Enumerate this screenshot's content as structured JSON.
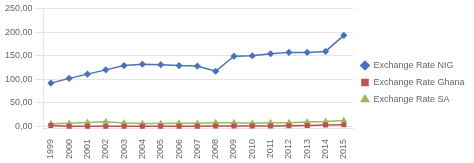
{
  "chart_data": {
    "type": "line",
    "x": [
      1999,
      2000,
      2001,
      2002,
      2003,
      2004,
      2005,
      2006,
      2007,
      2008,
      2009,
      2010,
      2011,
      2012,
      2013,
      2014,
      2015
    ],
    "series": [
      {
        "name": "Exchange Rate NIG",
        "color": "#4472C4",
        "marker": "diamond",
        "values": [
          92,
          102,
          111,
          120,
          129,
          132,
          131,
          129,
          128,
          117,
          149,
          150,
          154,
          157,
          157,
          159,
          193
        ]
      },
      {
        "name": "Exchange Rate Ghana",
        "color": "#C0504D",
        "marker": "square",
        "values": [
          2.5,
          0.7,
          0.7,
          0.7,
          0.9,
          0.9,
          0.9,
          0.9,
          0.9,
          1.1,
          1.4,
          1.4,
          1.5,
          1.9,
          2.2,
          3.2,
          3.8
        ]
      },
      {
        "name": "Exchange Rate SA",
        "color": "#9BBB59",
        "marker": "triangle",
        "values": [
          6.1,
          6.9,
          8.6,
          10.5,
          7.6,
          6.5,
          6.4,
          7.0,
          7.0,
          8.3,
          8.4,
          7.3,
          8.1,
          8.2,
          9.7,
          10.8,
          12.8
        ]
      }
    ],
    "xlim": [
      1998.6,
      2015.5
    ],
    "xticks": [
      1999,
      2000,
      2001,
      2002,
      2003,
      2004,
      2005,
      2006,
      2007,
      2008,
      2009,
      2010,
      2011,
      2012,
      2013,
      2014,
      2015
    ],
    "ylim": [
      -5,
      250
    ],
    "yticks": [
      {
        "value": 0,
        "label": "0,00"
      },
      {
        "value": 50,
        "label": "50,00"
      },
      {
        "value": 100,
        "label": "100,00"
      },
      {
        "value": 150,
        "label": "150,00"
      },
      {
        "value": 200,
        "label": "200,00"
      },
      {
        "value": 250,
        "label": "250,00"
      }
    ],
    "grid": "y",
    "legend": "right"
  }
}
